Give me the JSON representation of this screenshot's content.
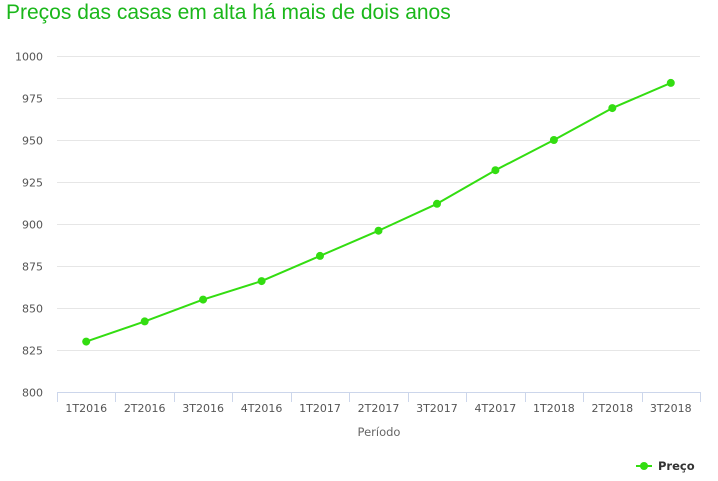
{
  "chart_data": {
    "type": "line",
    "title": "Preços das casas em alta há mais de dois anos",
    "xlabel": "Período",
    "ylabel": "",
    "categories": [
      "1T2016",
      "2T2016",
      "3T2016",
      "4T2016",
      "1T2017",
      "2T2017",
      "3T2017",
      "4T2017",
      "1T2018",
      "2T2018",
      "3T2018"
    ],
    "series": [
      {
        "name": "Preço",
        "values": [
          830,
          842,
          855,
          866,
          881,
          896,
          912,
          932,
          950,
          969,
          984
        ]
      }
    ],
    "ylim": [
      800,
      1000
    ],
    "yticks": [
      800,
      825,
      850,
      875,
      900,
      925,
      950,
      975,
      1000
    ],
    "grid": true,
    "legend": "bottom-right",
    "colors": {
      "series": "#33dd11",
      "title": "#1ab71a",
      "grid": "#e6e6e6",
      "axis": "#ccd6eb"
    }
  }
}
